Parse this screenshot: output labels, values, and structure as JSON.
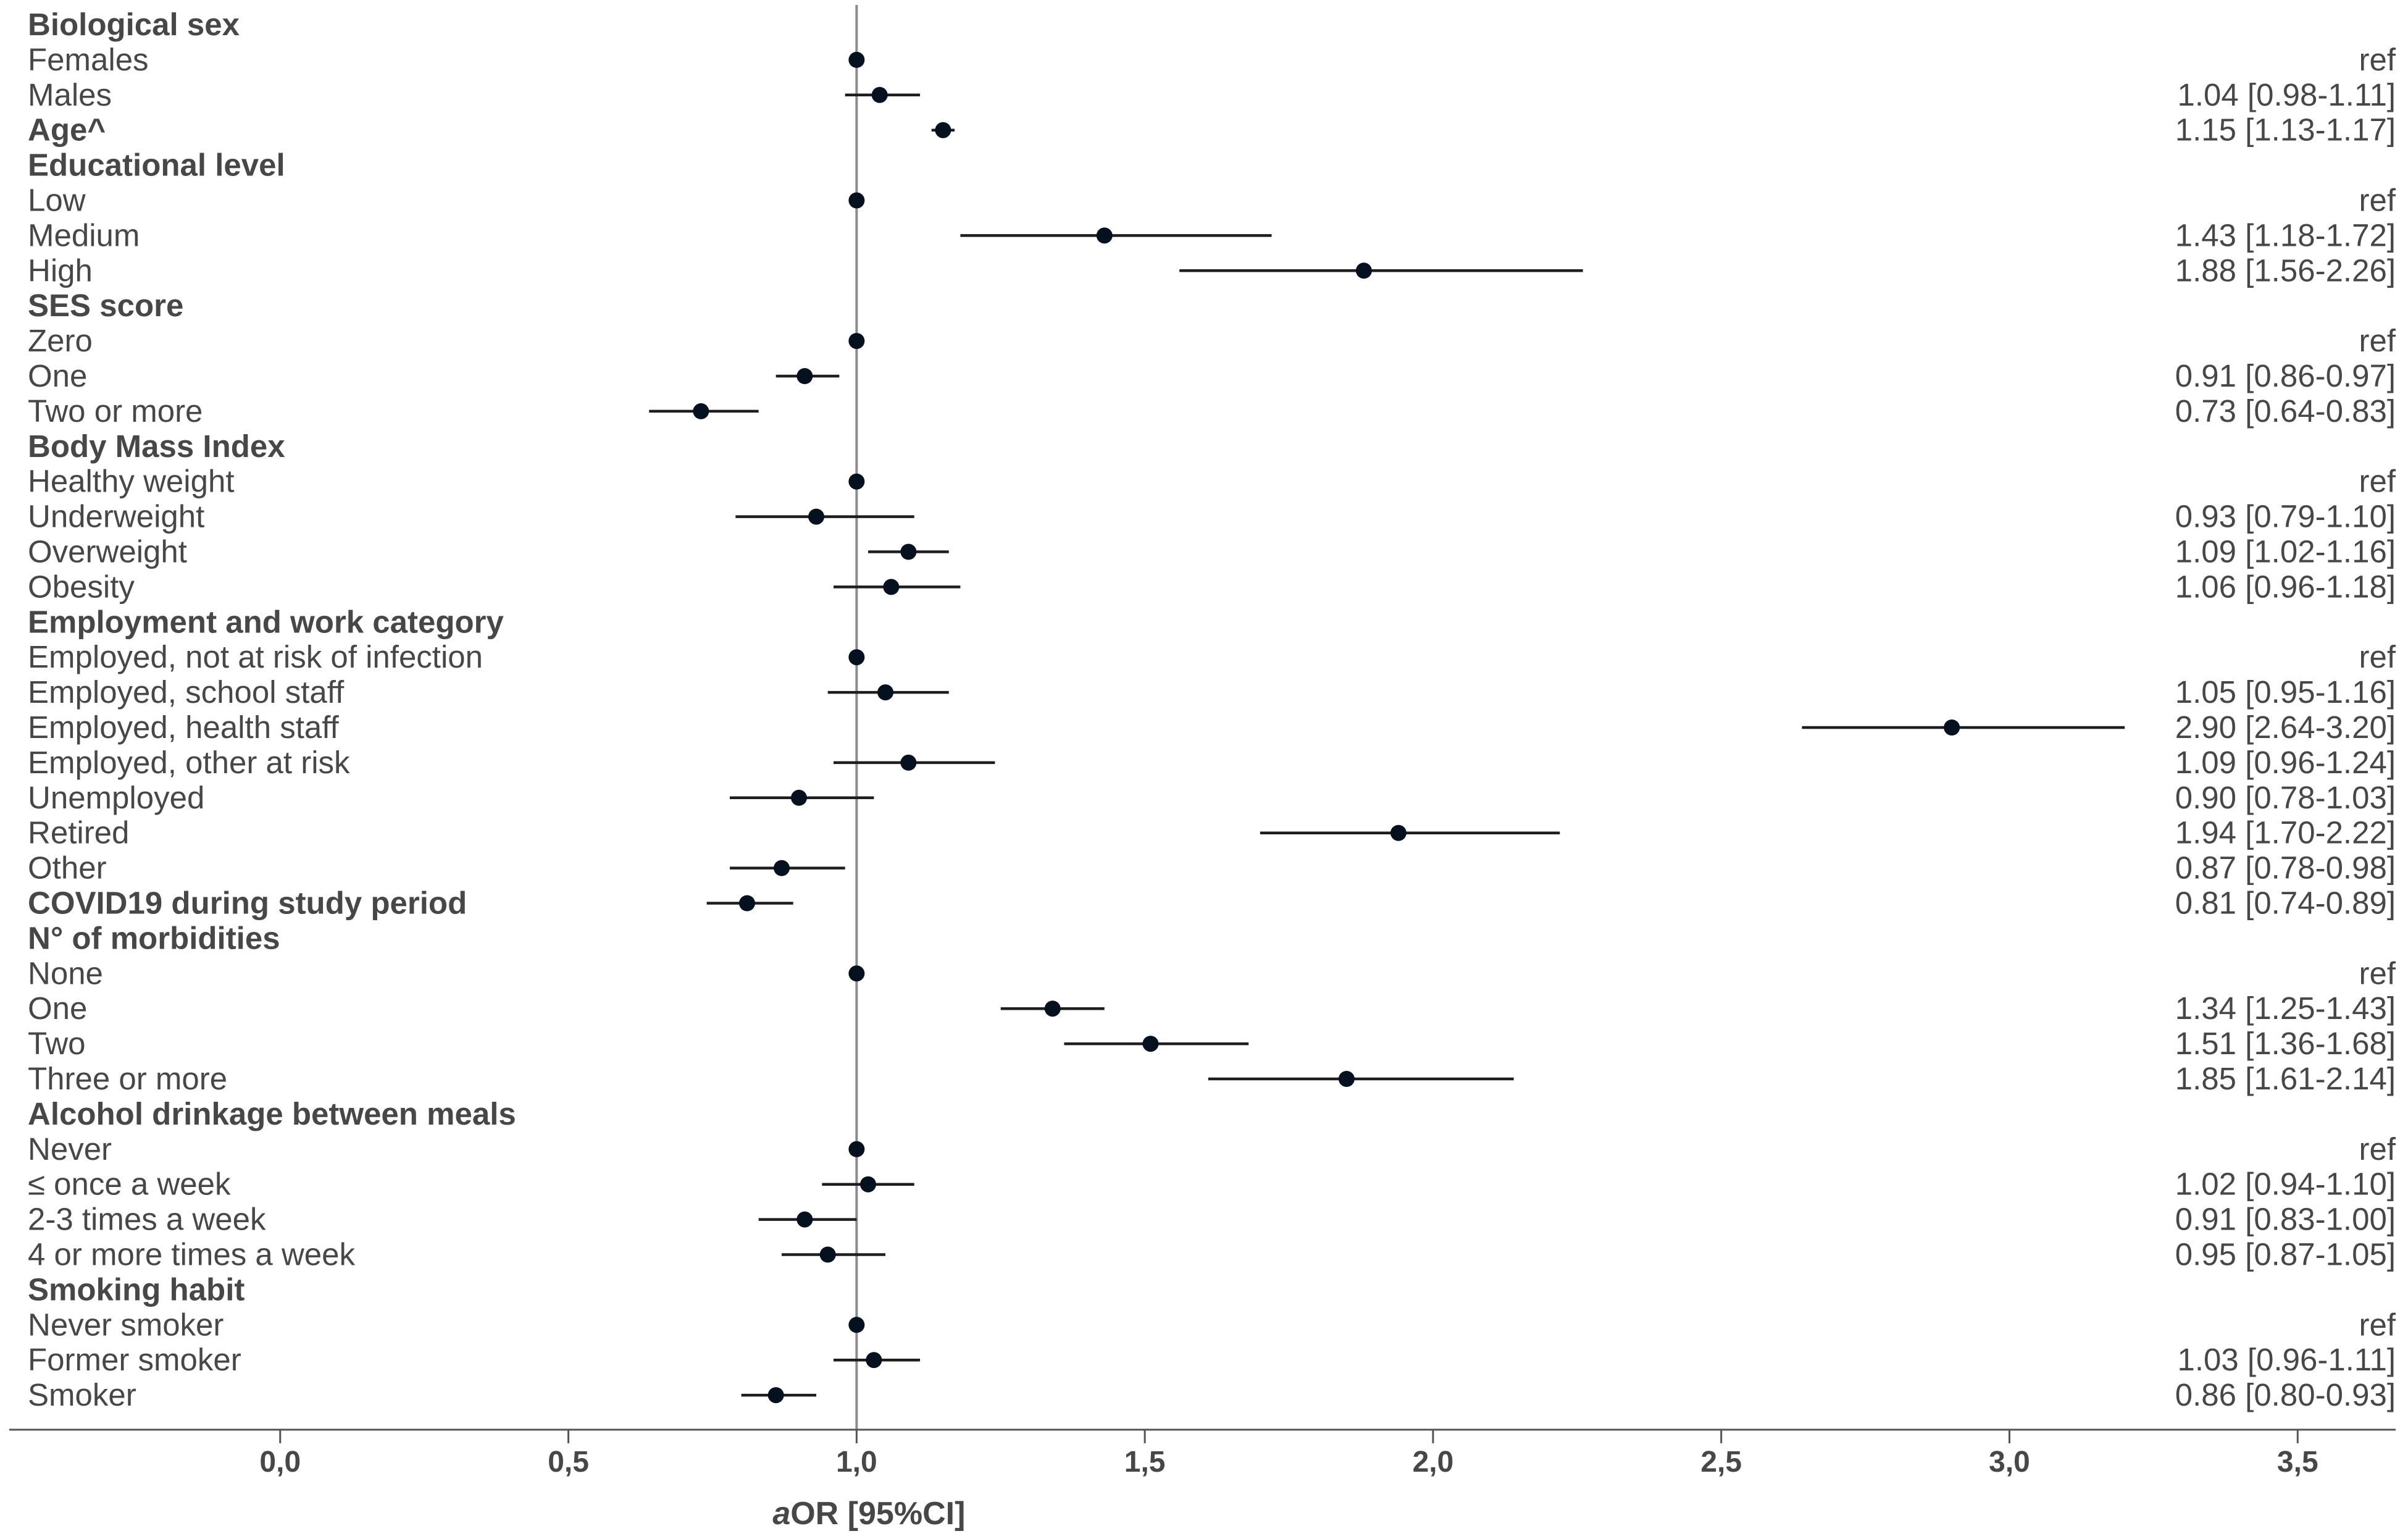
{
  "chart_data": {
    "type": "forest",
    "xlabel_prefix": "a",
    "xlabel": "OR [95%CI]",
    "xlim": [
      -0.47,
      3.67
    ],
    "reference_line": 1.0,
    "ticks": [
      {
        "value": 0,
        "label": "0,0"
      },
      {
        "value": 0.5,
        "label": "0,5"
      },
      {
        "value": 1,
        "label": "1,0"
      },
      {
        "value": 1.5,
        "label": "1,5"
      },
      {
        "value": 2,
        "label": "2,0"
      },
      {
        "value": 2.5,
        "label": "2,5"
      },
      {
        "value": 3,
        "label": "3,0"
      },
      {
        "value": 3.5,
        "label": "3,5"
      }
    ],
    "rows": [
      {
        "label": "Biological sex",
        "header": true
      },
      {
        "label": "Females",
        "or": 1.0,
        "ref": true,
        "text": "ref"
      },
      {
        "label": "Males",
        "or": 1.04,
        "lo": 0.98,
        "hi": 1.11,
        "text": "1.04 [0.98-1.11]"
      },
      {
        "label": "Age^",
        "header": true,
        "or": 1.15,
        "lo": 1.13,
        "hi": 1.17,
        "text": "1.15 [1.13-1.17]"
      },
      {
        "label": "Educational level",
        "header": true
      },
      {
        "label": "Low",
        "or": 1.0,
        "ref": true,
        "text": "ref"
      },
      {
        "label": "Medium",
        "or": 1.43,
        "lo": 1.18,
        "hi": 1.72,
        "text": "1.43 [1.18-1.72]"
      },
      {
        "label": "High",
        "or": 1.88,
        "lo": 1.56,
        "hi": 2.26,
        "text": "1.88 [1.56-2.26]"
      },
      {
        "label": "SES score",
        "header": true
      },
      {
        "label": "Zero",
        "or": 1.0,
        "ref": true,
        "text": "ref"
      },
      {
        "label": "One",
        "or": 0.91,
        "lo": 0.86,
        "hi": 0.97,
        "text": "0.91 [0.86-0.97]"
      },
      {
        "label": "Two or more",
        "or": 0.73,
        "lo": 0.64,
        "hi": 0.83,
        "text": "0.73 [0.64-0.83]"
      },
      {
        "label": "Body Mass Index",
        "header": true
      },
      {
        "label": "Healthy weight",
        "or": 1.0,
        "ref": true,
        "text": "ref"
      },
      {
        "label": "Underweight",
        "or": 0.93,
        "lo": 0.79,
        "hi": 1.1,
        "text": "0.93 [0.79-1.10]"
      },
      {
        "label": "Overweight",
        "or": 1.09,
        "lo": 1.02,
        "hi": 1.16,
        "text": "1.09 [1.02-1.16]"
      },
      {
        "label": "Obesity",
        "or": 1.06,
        "lo": 0.96,
        "hi": 1.18,
        "text": "1.06 [0.96-1.18]"
      },
      {
        "label": "Employment and work category",
        "header": true
      },
      {
        "label": "Employed, not at risk of infection",
        "or": 1.0,
        "ref": true,
        "text": "ref"
      },
      {
        "label": "Employed, school staff",
        "or": 1.05,
        "lo": 0.95,
        "hi": 1.16,
        "text": "1.05 [0.95-1.16]"
      },
      {
        "label": "Employed, health staff",
        "or": 2.9,
        "lo": 2.64,
        "hi": 3.2,
        "text": "2.90 [2.64-3.20]"
      },
      {
        "label": "Employed, other at risk",
        "or": 1.09,
        "lo": 0.96,
        "hi": 1.24,
        "text": "1.09 [0.96-1.24]"
      },
      {
        "label": "Unemployed",
        "or": 0.9,
        "lo": 0.78,
        "hi": 1.03,
        "text": "0.90 [0.78-1.03]"
      },
      {
        "label": "Retired",
        "or": 1.94,
        "lo": 1.7,
        "hi": 2.22,
        "text": "1.94 [1.70-2.22]"
      },
      {
        "label": "Other",
        "or": 0.87,
        "lo": 0.78,
        "hi": 0.98,
        "text": "0.87 [0.78-0.98]"
      },
      {
        "label": "COVID19 during study period",
        "header": true,
        "or": 0.81,
        "lo": 0.74,
        "hi": 0.89,
        "text": "0.81 [0.74-0.89]"
      },
      {
        "label": "N° of morbidities",
        "header": true
      },
      {
        "label": "None",
        "or": 1.0,
        "ref": true,
        "text": "ref"
      },
      {
        "label": "One",
        "or": 1.34,
        "lo": 1.25,
        "hi": 1.43,
        "text": "1.34 [1.25-1.43]"
      },
      {
        "label": "Two",
        "or": 1.51,
        "lo": 1.36,
        "hi": 1.68,
        "text": "1.51 [1.36-1.68]"
      },
      {
        "label": "Three or more",
        "or": 1.85,
        "lo": 1.61,
        "hi": 2.14,
        "text": "1.85 [1.61-2.14]"
      },
      {
        "label": "Alcohol drinkage between meals",
        "header": true
      },
      {
        "label": "Never",
        "or": 1.0,
        "ref": true,
        "text": "ref"
      },
      {
        "label": "≤ once a week",
        "or": 1.02,
        "lo": 0.94,
        "hi": 1.1,
        "text": "1.02 [0.94-1.10]"
      },
      {
        "label": "2-3 times a week",
        "or": 0.91,
        "lo": 0.83,
        "hi": 1.0,
        "text": "0.91 [0.83-1.00]"
      },
      {
        "label": "4 or more times a week",
        "or": 0.95,
        "lo": 0.87,
        "hi": 1.05,
        "text": "0.95 [0.87-1.05]"
      },
      {
        "label": "Smoking habit",
        "header": true
      },
      {
        "label": "Never smoker",
        "or": 1.0,
        "ref": true,
        "text": "ref"
      },
      {
        "label": "Former smoker",
        "or": 1.03,
        "lo": 0.96,
        "hi": 1.11,
        "text": "1.03 [0.96-1.11]"
      },
      {
        "label": "Smoker",
        "or": 0.86,
        "lo": 0.8,
        "hi": 0.93,
        "text": "0.86 [0.80-0.93]"
      }
    ],
    "colors": {
      "text": "#474747",
      "point": "#05111f",
      "ci_line": "#1e1e1e",
      "ref_line": "#8c8c8c",
      "axis": "#555555"
    }
  }
}
